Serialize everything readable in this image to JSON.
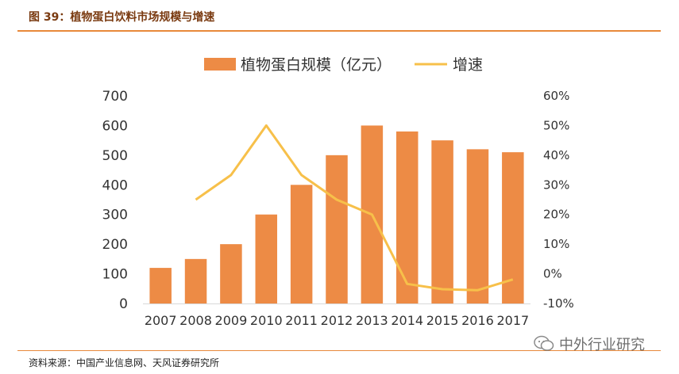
{
  "figure_title": "图 39：植物蛋白饮料市场规模与增速",
  "source": "资料来源：中国产业信息网、天风证券研究所",
  "watermark": "中外行业研究",
  "colors": {
    "bar": "#ED8B45",
    "line": "#F7C04A",
    "title": "#7a3a10",
    "rule": "#e8893a"
  },
  "chart_data": {
    "type": "bar",
    "categories": [
      "2007",
      "2008",
      "2009",
      "2010",
      "2011",
      "2012",
      "2013",
      "2014",
      "2015",
      "2016",
      "2017"
    ],
    "series": [
      {
        "name": "植物蛋白规模（亿元）",
        "type": "bar",
        "axis": "left",
        "values": [
          120,
          150,
          200,
          300,
          400,
          500,
          600,
          580,
          550,
          520,
          510
        ]
      },
      {
        "name": "增速",
        "type": "line",
        "axis": "right",
        "values": [
          null,
          0.25,
          0.333,
          0.5,
          0.333,
          0.25,
          0.2,
          -0.034,
          -0.052,
          -0.055,
          -0.019
        ]
      }
    ],
    "y_left": {
      "min": 0,
      "max": 700,
      "ticks": [
        "0",
        "100",
        "200",
        "300",
        "400",
        "500",
        "600",
        "700"
      ]
    },
    "y_right": {
      "min": -0.1,
      "max": 0.6,
      "ticks": [
        "-10%",
        "0%",
        "10%",
        "20%",
        "30%",
        "40%",
        "50%",
        "60%"
      ]
    },
    "legend": [
      {
        "label": "植物蛋白规模（亿元）",
        "kind": "bar"
      },
      {
        "label": "增速",
        "kind": "line"
      }
    ],
    "legend_position": "top-center"
  }
}
